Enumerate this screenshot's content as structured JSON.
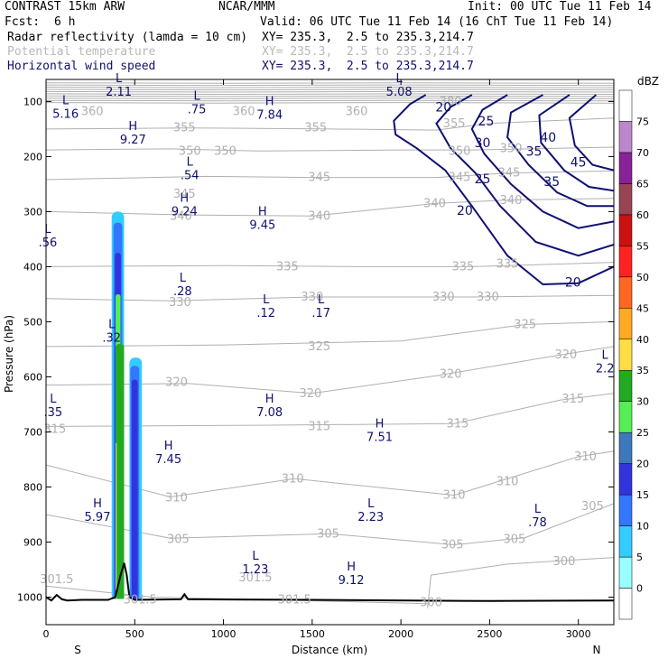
{
  "header": {
    "model": "CONTRAST 15km ARW",
    "org": "NCAR/MMM",
    "init": "Init: 00 UTC Tue 11 Feb 14",
    "fcst_label": "Fcst:",
    "fcst_value": "6 h",
    "valid": "Valid: 06 UTC Tue 11 Feb 14 (16 ChT Tue 11 Feb 14)",
    "fields": [
      {
        "name": "Radar reflectivity (lamda = 10 cm)",
        "xy": "XY= 235.3,  2.5 to 235.3,214.7",
        "color": "#000000"
      },
      {
        "name": "Potential temperature",
        "xy": "XY= 235.3,  2.5 to 235.3,214.7",
        "color": "#b8b8b8"
      },
      {
        "name": "Horizontal wind speed",
        "xy": "XY= 235.3,  2.5 to 235.3,214.7",
        "color": "#101070"
      }
    ]
  },
  "colorbar": {
    "unit": "dBZ",
    "levels": [
      0,
      5,
      10,
      15,
      20,
      25,
      30,
      35,
      40,
      45,
      50,
      55,
      60,
      65,
      70,
      75
    ],
    "colors": [
      "#ffffff",
      "#99ffff",
      "#33ccff",
      "#3377ff",
      "#3333dd",
      "#3d78bb",
      "#55ee55",
      "#22aa22",
      "#ffdd44",
      "#ffaa22",
      "#ff6622",
      "#ff2222",
      "#cc1111",
      "#994455",
      "#882299",
      "#bb88cc",
      "#ffffff"
    ]
  },
  "chart_data": {
    "type": "cross-section",
    "xlabel": "Distance (km)",
    "ylabel": "Pressure (hPa)",
    "x_range": [
      0,
      3200
    ],
    "y_range": [
      1050,
      60
    ],
    "x_ticks": [
      "0",
      "500",
      "1000",
      "1500",
      "2000",
      "2500",
      "3000"
    ],
    "x_tick_values": [
      0,
      500,
      1000,
      1500,
      2000,
      2500,
      3000
    ],
    "y_ticks": [
      "100",
      "200",
      "300",
      "400",
      "500",
      "600",
      "700",
      "800",
      "900",
      "1000"
    ],
    "y_tick_values": [
      100,
      200,
      300,
      400,
      500,
      600,
      700,
      800,
      900,
      1000
    ],
    "end_labels": {
      "left": "S",
      "right": "N"
    },
    "theta_labels": [
      {
        "t": "380",
        "x": 2280,
        "p": 100
      },
      {
        "t": "360",
        "x": 260,
        "p": 118
      },
      {
        "t": "360",
        "x": 1115,
        "p": 118
      },
      {
        "t": "360",
        "x": 1750,
        "p": 118
      },
      {
        "t": "355",
        "x": 780,
        "p": 148
      },
      {
        "t": "355",
        "x": 1520,
        "p": 148
      },
      {
        "t": "355",
        "x": 2300,
        "p": 140
      },
      {
        "t": "350",
        "x": 810,
        "p": 190
      },
      {
        "t": "350",
        "x": 1010,
        "p": 190
      },
      {
        "t": "350",
        "x": 2330,
        "p": 190
      },
      {
        "t": "350",
        "x": 2620,
        "p": 185
      },
      {
        "t": "345",
        "x": 780,
        "p": 268
      },
      {
        "t": "345",
        "x": 1540,
        "p": 238
      },
      {
        "t": "345",
        "x": 2330,
        "p": 238
      },
      {
        "t": "345",
        "x": 2610,
        "p": 230
      },
      {
        "t": "340",
        "x": 760,
        "p": 308
      },
      {
        "t": "340",
        "x": 1540,
        "p": 308
      },
      {
        "t": "340",
        "x": 2190,
        "p": 285
      },
      {
        "t": "340",
        "x": 2620,
        "p": 280
      },
      {
        "t": "335",
        "x": 1360,
        "p": 400
      },
      {
        "t": "335",
        "x": 2350,
        "p": 400
      },
      {
        "t": "335",
        "x": 2600,
        "p": 395
      },
      {
        "t": "330",
        "x": 755,
        "p": 465
      },
      {
        "t": "330",
        "x": 1500,
        "p": 455
      },
      {
        "t": "330",
        "x": 2240,
        "p": 455
      },
      {
        "t": "330",
        "x": 2490,
        "p": 455
      },
      {
        "t": "325",
        "x": 1540,
        "p": 545
      },
      {
        "t": "325",
        "x": 2700,
        "p": 505
      },
      {
        "t": "320",
        "x": 735,
        "p": 610
      },
      {
        "t": "320",
        "x": 1490,
        "p": 630
      },
      {
        "t": "320",
        "x": 2280,
        "p": 595
      },
      {
        "t": "320",
        "x": 2930,
        "p": 560
      },
      {
        "t": "315",
        "x": 2970,
        "p": 640
      },
      {
        "t": "315",
        "x": 1540,
        "p": 690
      },
      {
        "t": "315",
        "x": 2320,
        "p": 685
      },
      {
        "t": "315",
        "x": 50,
        "p": 695
      },
      {
        "t": "310",
        "x": 735,
        "p": 820
      },
      {
        "t": "310",
        "x": 1390,
        "p": 785
      },
      {
        "t": "310",
        "x": 2300,
        "p": 815
      },
      {
        "t": "310",
        "x": 2600,
        "p": 790
      },
      {
        "t": "310",
        "x": 3040,
        "p": 745
      },
      {
        "t": "305",
        "x": 745,
        "p": 895
      },
      {
        "t": "305",
        "x": 1590,
        "p": 885
      },
      {
        "t": "305",
        "x": 2290,
        "p": 905
      },
      {
        "t": "305",
        "x": 2640,
        "p": 895
      },
      {
        "t": "305",
        "x": 3080,
        "p": 835
      },
      {
        "t": "300",
        "x": 2920,
        "p": 935
      },
      {
        "t": "300",
        "x": 2170,
        "p": 1010
      },
      {
        "t": "301.5",
        "x": 60,
        "p": 968
      },
      {
        "t": "301.5",
        "x": 530,
        "p": 1005
      },
      {
        "t": "301.5",
        "x": 1400,
        "p": 1005
      },
      {
        "t": "301.5",
        "x": 1180,
        "p": 965
      }
    ],
    "wind_labels": [
      {
        "t": "20",
        "x": 2240,
        "p": 110
      },
      {
        "t": "25",
        "x": 2480,
        "p": 135
      },
      {
        "t": "30",
        "x": 2460,
        "p": 175
      },
      {
        "t": "35",
        "x": 2750,
        "p": 190
      },
      {
        "t": "40",
        "x": 2830,
        "p": 165
      },
      {
        "t": "45",
        "x": 3000,
        "p": 210
      },
      {
        "t": "35",
        "x": 2850,
        "p": 245
      },
      {
        "t": "25",
        "x": 2460,
        "p": 240
      },
      {
        "t": "20",
        "x": 2360,
        "p": 298
      },
      {
        "t": "20",
        "x": 2970,
        "p": 428
      }
    ],
    "extrema": [
      {
        "k": "L",
        "v": "2.11",
        "x": 410,
        "p": 78
      },
      {
        "k": "L",
        "v": ".75",
        "x": 850,
        "p": 110
      },
      {
        "k": "H",
        "v": "7.84",
        "x": 1260,
        "p": 120
      },
      {
        "k": "L",
        "v": "5.08",
        "x": 1990,
        "p": 78
      },
      {
        "k": "L",
        "v": "5.16",
        "x": 110,
        "p": 118
      },
      {
        "k": "H",
        "v": "9.27",
        "x": 490,
        "p": 165
      },
      {
        "k": "L",
        "v": ".54",
        "x": 810,
        "p": 230
      },
      {
        "k": "H",
        "v": "9.24",
        "x": 780,
        "p": 295
      },
      {
        "k": "H",
        "v": "9.45",
        "x": 1220,
        "p": 320
      },
      {
        "k": "L",
        "v": ".56",
        "x": 10,
        "p": 352
      },
      {
        "k": "L",
        "v": ".28",
        "x": 770,
        "p": 440
      },
      {
        "k": "L",
        "v": ".12",
        "x": 1240,
        "p": 480
      },
      {
        "k": "L",
        "v": ".17",
        "x": 1550,
        "p": 480
      },
      {
        "k": "L",
        "v": ".32",
        "x": 370,
        "p": 525
      },
      {
        "k": "L",
        "v": "2.2",
        "x": 3150,
        "p": 580
      },
      {
        "k": "L",
        "v": ".35",
        "x": 40,
        "p": 660
      },
      {
        "k": "H",
        "v": "7.08",
        "x": 1260,
        "p": 660
      },
      {
        "k": "H",
        "v": "7.51",
        "x": 1880,
        "p": 705
      },
      {
        "k": "H",
        "v": "7.45",
        "x": 690,
        "p": 745
      },
      {
        "k": "H",
        "v": "5.97",
        "x": 290,
        "p": 850
      },
      {
        "k": "L",
        "v": "2.23",
        "x": 1830,
        "p": 850
      },
      {
        "k": "L",
        "v": ".78",
        "x": 2770,
        "p": 860
      },
      {
        "k": "L",
        "v": "1.23",
        "x": 1180,
        "p": 945
      },
      {
        "k": "H",
        "v": "9.12",
        "x": 1720,
        "p": 965
      }
    ],
    "reflectivity_cells": [
      {
        "dbz": 5,
        "x0": 370,
        "x1": 440,
        "pt": 300,
        "pb": 1003
      },
      {
        "dbz": 10,
        "x0": 380,
        "x1": 430,
        "pt": 320,
        "pb": 1003
      },
      {
        "dbz": 15,
        "x0": 388,
        "x1": 422,
        "pt": 375,
        "pb": 1003
      },
      {
        "dbz": 25,
        "x0": 392,
        "x1": 420,
        "pt": 450,
        "pb": 1003
      },
      {
        "dbz": 30,
        "x0": 392,
        "x1": 440,
        "pt": 540,
        "pb": 1003
      },
      {
        "dbz": 35,
        "x0": 393,
        "x1": 398,
        "pt": 720,
        "pb": 1003
      },
      {
        "dbz": 5,
        "x0": 470,
        "x1": 540,
        "pt": 565,
        "pb": 1003
      },
      {
        "dbz": 10,
        "x0": 475,
        "x1": 525,
        "pt": 580,
        "pb": 1003
      },
      {
        "dbz": 15,
        "x0": 483,
        "x1": 517,
        "pt": 605,
        "pb": 1003
      }
    ]
  }
}
